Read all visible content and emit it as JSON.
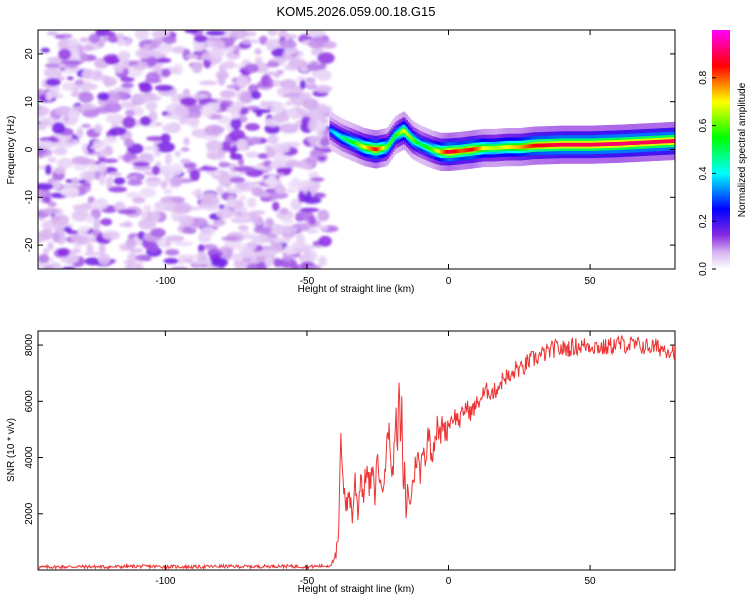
{
  "title": "KOM5.2026.059.00.18.G15",
  "chart_data": [
    {
      "type": "heatmap",
      "xlabel": "Height of straight line (km)",
      "ylabel": "Frequency (Hz)",
      "xlim": [
        -145,
        80
      ],
      "ylim": [
        -25,
        25
      ],
      "xticks": [
        -100,
        -50,
        0,
        50
      ],
      "yticks": [
        -20,
        -10,
        0,
        10,
        20
      ],
      "grid": false,
      "colorbar": {
        "label": "Normalized spectral amplitude",
        "range": [
          0,
          1
        ],
        "ticks": [
          0.0,
          0.2,
          0.4,
          0.6,
          0.8
        ],
        "colors": [
          "#ffffff",
          "#d8b4f0",
          "#8a2be2",
          "#0000ff",
          "#00ffff",
          "#00ff00",
          "#ffff00",
          "#ff0000",
          "#ff00ff"
        ]
      },
      "noise_region": {
        "x": [
          -145,
          -42
        ],
        "y": [
          -25,
          25
        ],
        "amplitude": [
          0.03,
          0.12
        ]
      },
      "ridge": {
        "x": [
          -42,
          -38,
          -34,
          -30,
          -26,
          -22,
          -19,
          -16,
          -13,
          -10,
          -6,
          -3,
          0,
          4,
          8,
          12,
          16,
          20,
          25,
          30,
          40,
          50,
          60,
          70,
          80
        ],
        "y": [
          4,
          2.5,
          1.5,
          0.5,
          0,
          0.5,
          3,
          4,
          2,
          1,
          0,
          -0.5,
          -0.5,
          -0.3,
          0,
          0.3,
          0.3,
          0.5,
          0.5,
          0.8,
          1,
          1,
          1.2,
          1.5,
          1.8
        ],
        "amplitude": [
          0.35,
          0.45,
          0.55,
          0.7,
          0.85,
          0.6,
          0.55,
          0.7,
          0.6,
          0.5,
          0.6,
          0.75,
          0.9,
          0.8,
          0.85,
          0.7,
          0.65,
          0.7,
          0.75,
          0.85,
          0.9,
          0.9,
          0.92,
          0.9,
          0.9
        ]
      }
    },
    {
      "type": "line",
      "xlabel": "Height of straight line (km)",
      "ylabel": "SNR (10 * v/v)",
      "xlim": [
        -145,
        80
      ],
      "ylim": [
        0,
        8500
      ],
      "xticks": [
        -100,
        -50,
        0,
        50
      ],
      "yticks": [
        2000,
        4000,
        6000,
        8000
      ],
      "grid": false,
      "series": [
        {
          "color": "#ee3333",
          "x": [
            -145,
            -130,
            -120,
            -110,
            -100,
            -90,
            -80,
            -70,
            -60,
            -50,
            -42,
            -40,
            -39,
            -38.5,
            -38,
            -37,
            -36,
            -35,
            -34,
            -33,
            -32,
            -31,
            -30,
            -29,
            -28,
            -27,
            -26,
            -25,
            -24,
            -23,
            -22,
            -21,
            -20,
            -19,
            -18.5,
            -18,
            -17.5,
            -17,
            -16.5,
            -16,
            -15.5,
            -15,
            -14.5,
            -14,
            -13,
            -12,
            -11,
            -10,
            -9,
            -8,
            -7,
            -6,
            -5,
            -4,
            -3,
            -2,
            -1,
            0,
            2,
            4,
            6,
            8,
            10,
            12,
            14,
            16,
            18,
            20,
            22,
            24,
            26,
            28,
            30,
            32,
            34,
            36,
            38,
            40,
            45,
            50,
            55,
            60,
            65,
            70,
            75,
            80
          ],
          "y": [
            100,
            120,
            110,
            130,
            120,
            110,
            130,
            120,
            140,
            120,
            150,
            400,
            900,
            2500,
            4800,
            3000,
            2200,
            2800,
            1900,
            3200,
            2100,
            3400,
            2600,
            3700,
            2900,
            3500,
            2700,
            4200,
            2800,
            3300,
            4100,
            5200,
            3100,
            4500,
            6200,
            3800,
            7000,
            4400,
            5800,
            2600,
            3600,
            1900,
            3100,
            2300,
            2800,
            3500,
            4200,
            3300,
            4500,
            3900,
            5000,
            4100,
            4600,
            5100,
            4700,
            5300,
            4900,
            5200,
            5500,
            5300,
            5800,
            5600,
            5900,
            6200,
            6400,
            6300,
            6600,
            6900,
            6800,
            7200,
            7100,
            7400,
            7500,
            7600,
            7700,
            7800,
            7900,
            7850,
            7950,
            8000,
            7900,
            8050,
            8000,
            7950,
            7900,
            7800
          ]
        }
      ]
    }
  ]
}
